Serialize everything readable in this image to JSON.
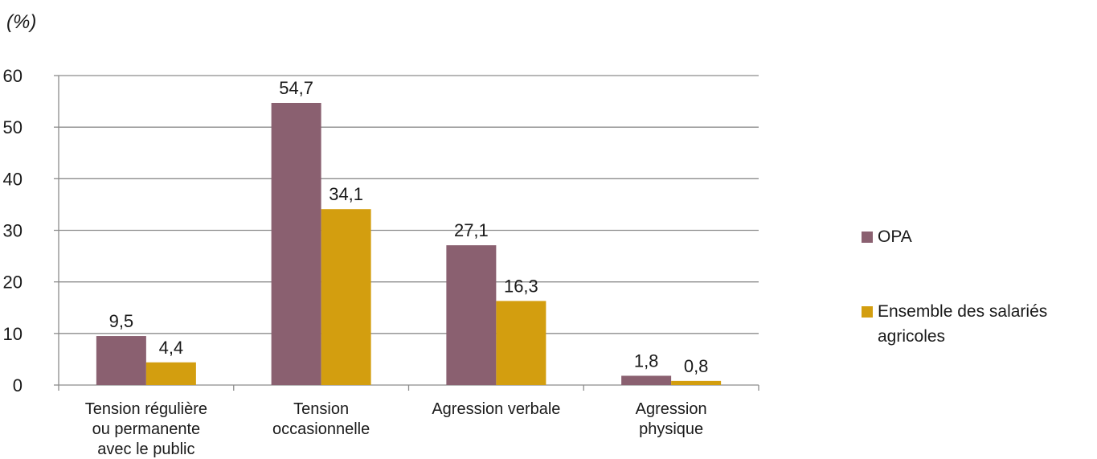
{
  "chart_data": {
    "type": "bar",
    "unit_label": "(%)",
    "categories": [
      "Tension régulière ou permanente avec le public",
      "Tension occasionnelle",
      "Agression verbale",
      "Agression physique"
    ],
    "category_lines": [
      [
        "Tension régulière",
        "ou permanente",
        "avec le public"
      ],
      [
        "Tension",
        "occasionnelle"
      ],
      [
        "Agression verbale"
      ],
      [
        "Agression",
        "physique"
      ]
    ],
    "series": [
      {
        "name": "OPA",
        "color": "#8a6070",
        "values": [
          9.5,
          54.7,
          27.1,
          1.8
        ],
        "labels": [
          "9,5",
          "54,7",
          "27,1",
          "1,8"
        ]
      },
      {
        "name": "Ensemble des salariés agricoles",
        "color": "#d39e0f",
        "values": [
          4.4,
          34.1,
          16.3,
          0.8
        ],
        "labels": [
          "4,4",
          "34,1",
          "16,3",
          "0,8"
        ]
      }
    ],
    "yticks": [
      0,
      10,
      20,
      30,
      40,
      50,
      60
    ],
    "ylim": [
      0,
      60
    ],
    "grid": true,
    "legend_position": "right"
  }
}
